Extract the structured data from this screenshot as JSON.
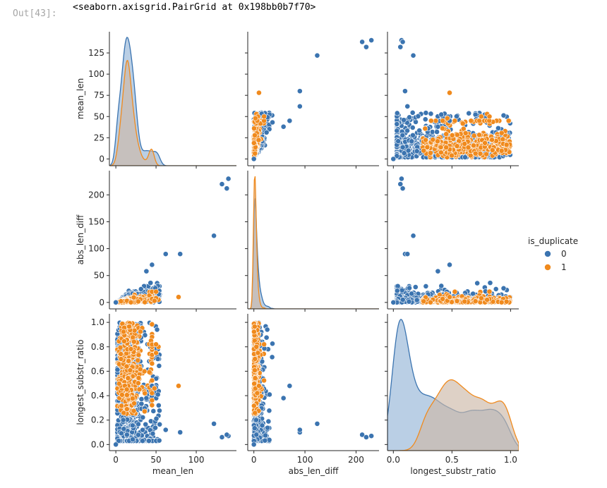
{
  "cell": {
    "prompt": "Out[43]:",
    "output_text": "<seaborn.axisgrid.PairGrid at 0x198bb0b7f70>"
  },
  "colors": {
    "class0": "#3b74b0",
    "class1": "#f08a1d",
    "kde0_fill": "#a3bfdc",
    "kde1_fill": "#cdb9a8",
    "mixed_fill": "#bcbcbc"
  },
  "chart_data": {
    "type": "scatter",
    "kind": "pairplot",
    "variables": [
      "mean_len",
      "abs_len_diff",
      "longest_substr_ratio"
    ],
    "axis_labels": {
      "mean_len": "mean_len",
      "abs_len_diff": "abs_len_diff",
      "longest_substr_ratio": "longest_substr_ratio"
    },
    "ranges": {
      "mean_len": [
        -8,
        150
      ],
      "abs_len_diff": [
        -12,
        245
      ],
      "longest_substr_ratio": [
        -0.05,
        1.07
      ]
    },
    "ticks": {
      "mean_len": {
        "values": [
          0,
          25,
          50,
          75,
          100,
          125
        ],
        "labels": [
          "0",
          "25",
          "50",
          "75",
          "100",
          "125"
        ],
        "x_values": [
          0,
          50,
          100
        ],
        "x_labels": [
          "0",
          "50",
          "100"
        ]
      },
      "abs_len_diff": {
        "values": [
          0,
          50,
          100,
          150,
          200
        ],
        "labels": [
          "0",
          "50",
          "100",
          "150",
          "200"
        ],
        "x_values": [
          0,
          100,
          200
        ],
        "x_labels": [
          "0",
          "100",
          "200"
        ]
      },
      "longest_substr_ratio": {
        "values": [
          0,
          0.2,
          0.4,
          0.6,
          0.8,
          1.0
        ],
        "labels": [
          "0.0",
          "0.2",
          "0.4",
          "0.6",
          "0.8",
          "1.0"
        ],
        "x_values": [
          0,
          0.5,
          1.0
        ],
        "x_labels": [
          "0.0",
          "0.5",
          "1.0"
        ]
      }
    },
    "hue": "is_duplicate",
    "legend": {
      "title": "is_duplicate",
      "placement": "right",
      "entries": [
        {
          "label": "0",
          "color": "#3b74b0"
        },
        {
          "label": "1",
          "color": "#f08a1d"
        }
      ]
    },
    "outliers": {
      "0": [
        {
          "mean_len": 122,
          "abs_len_diff": 124,
          "longest_substr_ratio": 0.17
        },
        {
          "mean_len": 140,
          "abs_len_diff": 230,
          "longest_substr_ratio": 0.07
        },
        {
          "mean_len": 138,
          "abs_len_diff": 212,
          "longest_substr_ratio": 0.08
        },
        {
          "mean_len": 132,
          "abs_len_diff": 220,
          "longest_substr_ratio": 0.06
        },
        {
          "mean_len": 80,
          "abs_len_diff": 90,
          "longest_substr_ratio": 0.1
        },
        {
          "mean_len": 62,
          "abs_len_diff": 90,
          "longest_substr_ratio": 0.12
        },
        {
          "mean_len": 45,
          "abs_len_diff": 70,
          "longest_substr_ratio": 0.48
        },
        {
          "mean_len": 38,
          "abs_len_diff": 58,
          "longest_substr_ratio": 0.38
        },
        {
          "mean_len": 0,
          "abs_len_diff": 0,
          "longest_substr_ratio": 0.0
        }
      ],
      "1": [
        {
          "mean_len": 53,
          "abs_len_diff": 5,
          "longest_substr_ratio": 0.8
        },
        {
          "mean_len": 50,
          "abs_len_diff": 8,
          "longest_substr_ratio": 0.75
        },
        {
          "mean_len": 48,
          "abs_len_diff": 3,
          "longest_substr_ratio": 0.46
        },
        {
          "mean_len": 78,
          "abs_len_diff": 10,
          "longest_substr_ratio": 0.48
        },
        {
          "mean_len": 50,
          "abs_len_diff": 20,
          "longest_substr_ratio": 0.82
        }
      ]
    },
    "kde": {
      "mean_len": {
        "0": {
          "peak_at": 11,
          "peak_density": 1.0
        },
        "1": {
          "peak_at": 10,
          "peak_density": 0.82
        }
      },
      "abs_len_diff": {
        "0": {
          "peak_at": 2,
          "peak_density": 1.0
        },
        "1": {
          "peak_at": 2,
          "peak_density": 1.2
        }
      },
      "longest_substr_ratio": {
        "0": {
          "peak_at": 0.18,
          "peak_density": 1.0
        },
        "1": {
          "peak_at": 0.35,
          "peak_density": 0.54
        }
      }
    }
  }
}
